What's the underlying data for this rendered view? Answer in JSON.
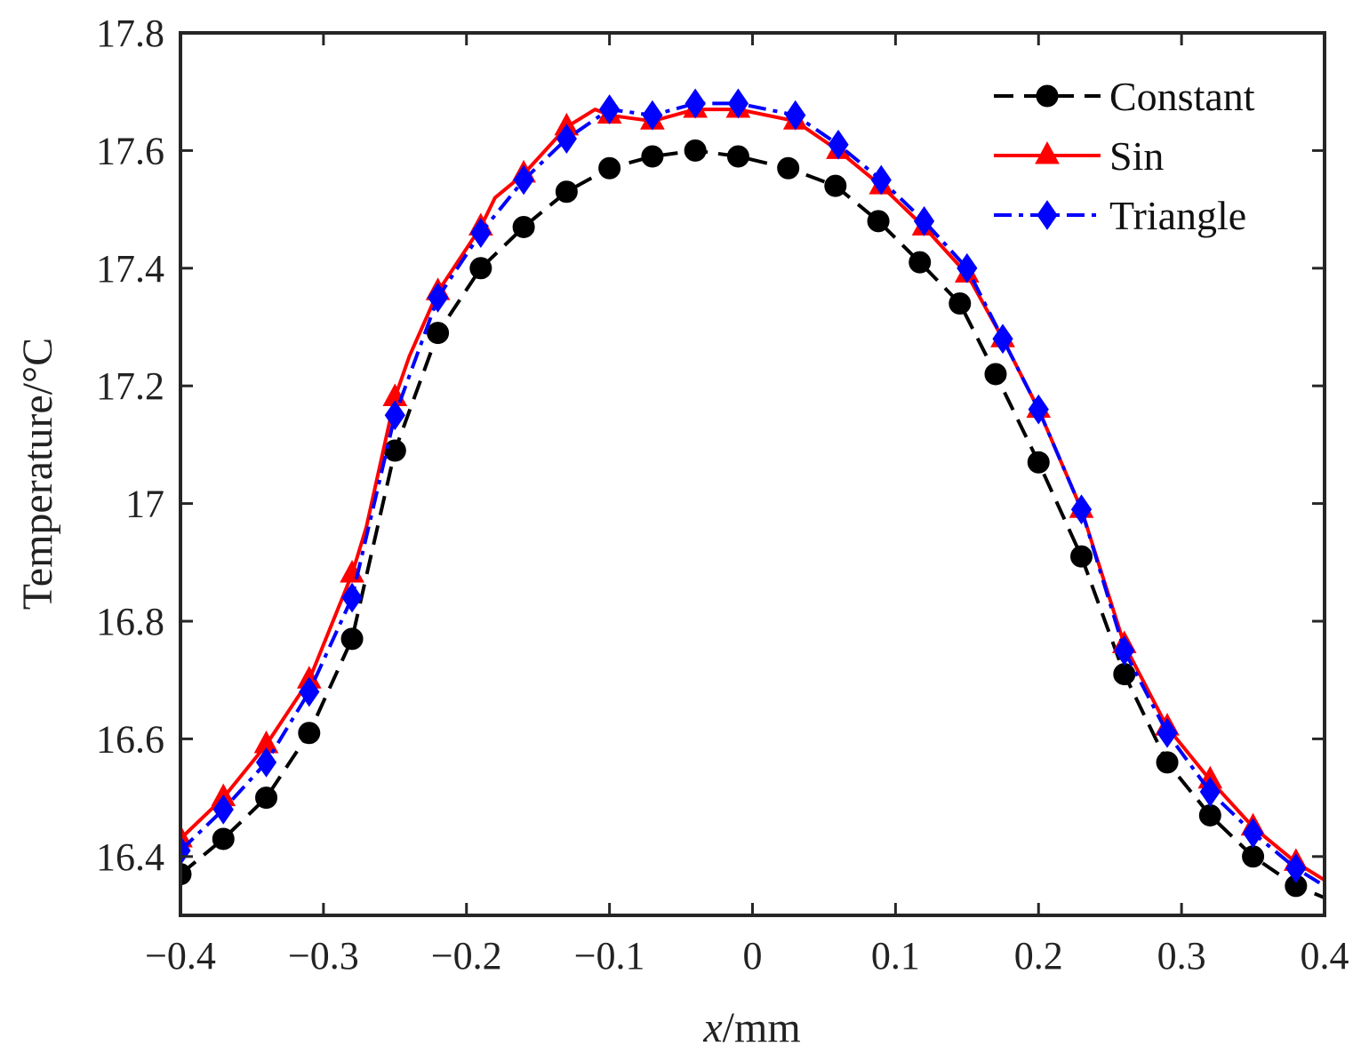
{
  "chart_data": {
    "type": "line",
    "title": "",
    "xlabel_italic": "x",
    "xlabel_unit": "/mm",
    "ylabel": "Temperature/°C",
    "xlim": [
      -0.4,
      0.4
    ],
    "ylim": [
      16.3,
      17.8
    ],
    "xticks": [
      -0.4,
      -0.3,
      -0.2,
      -0.1,
      0,
      0.1,
      0.2,
      0.3,
      0.4
    ],
    "xtick_labels": [
      "−0.4",
      "−0.3",
      "−0.2",
      "−0.1",
      "0",
      "0.1",
      "0.2",
      "0.3",
      "0.4"
    ],
    "yticks": [
      16.4,
      16.6,
      16.8,
      17.0,
      17.2,
      17.4,
      17.6,
      17.8
    ],
    "ytick_labels": [
      "16.4",
      "16.6",
      "16.8",
      "17",
      "17.2",
      "17.4",
      "17.6",
      "17.8"
    ],
    "legend_position": "top-right",
    "grid": false,
    "series": [
      {
        "name": "Constant",
        "color": "#000000",
        "marker": "circle",
        "line_style": "dashed",
        "x": [
          -0.4,
          -0.37,
          -0.34,
          -0.31,
          -0.28,
          -0.25,
          -0.22,
          -0.19,
          -0.16,
          -0.13,
          -0.1,
          -0.07,
          -0.04,
          -0.01,
          0.025,
          0.058,
          0.088,
          0.117,
          0.145,
          0.17,
          0.2,
          0.23,
          0.26,
          0.29,
          0.32,
          0.35,
          0.38,
          0.4
        ],
        "y": [
          16.37,
          16.43,
          16.5,
          16.61,
          16.77,
          17.09,
          17.29,
          17.4,
          17.47,
          17.53,
          17.57,
          17.59,
          17.6,
          17.59,
          17.57,
          17.54,
          17.48,
          17.41,
          17.34,
          17.22,
          17.07,
          16.91,
          16.71,
          16.56,
          16.47,
          16.4,
          16.35,
          16.33
        ],
        "marker_x": [
          -0.4,
          -0.37,
          -0.34,
          -0.31,
          -0.28,
          -0.25,
          -0.22,
          -0.19,
          -0.16,
          -0.13,
          -0.1,
          -0.07,
          -0.04,
          -0.01,
          0.025,
          0.058,
          0.088,
          0.117,
          0.145,
          0.17,
          0.2,
          0.23,
          0.26,
          0.29,
          0.32,
          0.35,
          0.38
        ],
        "marker_y": [
          16.37,
          16.43,
          16.5,
          16.61,
          16.77,
          17.09,
          17.29,
          17.4,
          17.47,
          17.53,
          17.57,
          17.59,
          17.6,
          17.59,
          17.57,
          17.54,
          17.48,
          17.41,
          17.34,
          17.22,
          17.07,
          16.91,
          16.71,
          16.56,
          16.47,
          16.4,
          16.35
        ]
      },
      {
        "name": "Sin",
        "color": "#ff0000",
        "marker": "triangle",
        "line_style": "solid",
        "x": [
          -0.4,
          -0.37,
          -0.34,
          -0.31,
          -0.28,
          -0.27,
          -0.25,
          -0.24,
          -0.22,
          -0.19,
          -0.18,
          -0.16,
          -0.13,
          -0.11,
          -0.1,
          -0.07,
          -0.04,
          -0.01,
          0.03,
          0.06,
          0.09,
          0.12,
          0.15,
          0.175,
          0.2,
          0.23,
          0.26,
          0.29,
          0.32,
          0.35,
          0.38,
          0.4
        ],
        "y": [
          16.43,
          16.5,
          16.59,
          16.7,
          16.88,
          16.96,
          17.18,
          17.25,
          17.36,
          17.47,
          17.52,
          17.56,
          17.64,
          17.67,
          17.66,
          17.65,
          17.67,
          17.67,
          17.65,
          17.6,
          17.54,
          17.47,
          17.39,
          17.28,
          17.16,
          16.99,
          16.76,
          16.62,
          16.53,
          16.45,
          16.39,
          16.36
        ],
        "marker_x": [
          -0.4,
          -0.37,
          -0.34,
          -0.31,
          -0.28,
          -0.25,
          -0.22,
          -0.19,
          -0.16,
          -0.13,
          -0.1,
          -0.07,
          -0.04,
          -0.01,
          0.03,
          0.06,
          0.09,
          0.12,
          0.15,
          0.175,
          0.2,
          0.23,
          0.26,
          0.29,
          0.32,
          0.35,
          0.38
        ],
        "marker_y": [
          16.43,
          16.5,
          16.59,
          16.7,
          16.88,
          17.18,
          17.36,
          17.47,
          17.56,
          17.64,
          17.66,
          17.65,
          17.67,
          17.67,
          17.65,
          17.6,
          17.54,
          17.47,
          17.39,
          17.28,
          17.16,
          16.99,
          16.76,
          16.62,
          16.53,
          16.45,
          16.39
        ]
      },
      {
        "name": "Triangle",
        "color": "#0000ff",
        "marker": "diamond",
        "line_style": "dash-dot",
        "x": [
          -0.4,
          -0.37,
          -0.34,
          -0.31,
          -0.28,
          -0.25,
          -0.22,
          -0.19,
          -0.16,
          -0.13,
          -0.1,
          -0.07,
          -0.04,
          -0.01,
          0.03,
          0.06,
          0.09,
          0.12,
          0.15,
          0.175,
          0.2,
          0.23,
          0.26,
          0.29,
          0.32,
          0.35,
          0.38,
          0.4
        ],
        "y": [
          16.41,
          16.48,
          16.56,
          16.68,
          16.84,
          17.15,
          17.35,
          17.46,
          17.55,
          17.62,
          17.67,
          17.66,
          17.68,
          17.68,
          17.66,
          17.61,
          17.55,
          17.48,
          17.4,
          17.28,
          17.16,
          16.99,
          16.75,
          16.61,
          16.51,
          16.44,
          16.38,
          16.35
        ],
        "marker_x": [
          -0.4,
          -0.37,
          -0.34,
          -0.31,
          -0.28,
          -0.25,
          -0.22,
          -0.19,
          -0.16,
          -0.13,
          -0.1,
          -0.07,
          -0.04,
          -0.01,
          0.03,
          0.06,
          0.09,
          0.12,
          0.15,
          0.175,
          0.2,
          0.23,
          0.26,
          0.29,
          0.32,
          0.35,
          0.38
        ],
        "marker_y": [
          16.41,
          16.48,
          16.56,
          16.68,
          16.84,
          17.15,
          17.35,
          17.46,
          17.55,
          17.62,
          17.67,
          17.66,
          17.68,
          17.68,
          17.66,
          17.61,
          17.55,
          17.48,
          17.4,
          17.28,
          17.16,
          16.99,
          16.75,
          16.61,
          16.51,
          16.44,
          16.38
        ]
      }
    ]
  }
}
